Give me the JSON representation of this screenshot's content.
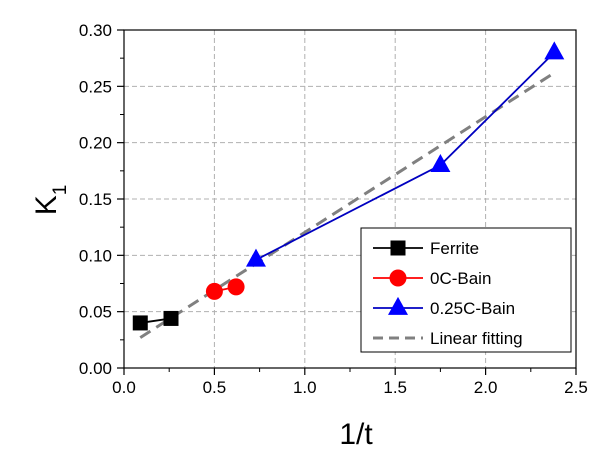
{
  "chart_data": {
    "type": "scatter",
    "xlabel": "1/t",
    "ylabel": "K",
    "ylabel_subscript": "1",
    "xlim": [
      0.0,
      2.5
    ],
    "ylim": [
      0.0,
      0.3
    ],
    "xticks": [
      "0.0",
      "0.5",
      "1.0",
      "1.5",
      "2.0",
      "2.5"
    ],
    "yticks": [
      "0.00",
      "0.05",
      "0.10",
      "0.15",
      "0.20",
      "0.25",
      "0.30"
    ],
    "grid": true,
    "legend_position": "bottom-right",
    "series": [
      {
        "name": "Ferrite",
        "marker": "square",
        "color": "#000000",
        "line_color": "#000000",
        "x": [
          0.09,
          0.26
        ],
        "y": [
          0.04,
          0.044
        ]
      },
      {
        "name": "0C-Bain",
        "marker": "circle",
        "color": "#ff0000",
        "line_color": "#ff0000",
        "x": [
          0.5,
          0.62
        ],
        "y": [
          0.068,
          0.072
        ]
      },
      {
        "name": "0.25C-Bain",
        "marker": "triangle",
        "color": "#0000ff",
        "line_color": "#0000c0",
        "x": [
          0.73,
          1.75,
          2.38
        ],
        "y": [
          0.096,
          0.18,
          0.28
        ]
      }
    ],
    "fit": {
      "name": "Linear fitting",
      "style": "dashed",
      "color": "#808080",
      "x": [
        0.09,
        2.38
      ],
      "y": [
        0.027,
        0.262
      ]
    }
  }
}
